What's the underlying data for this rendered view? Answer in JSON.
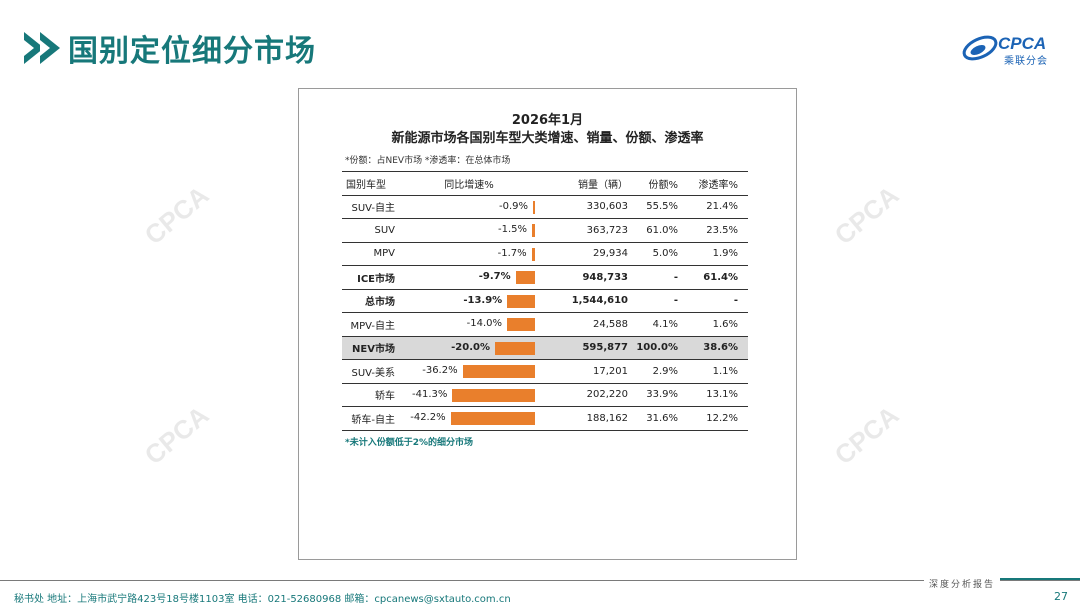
{
  "header": {
    "title": "国别定位细分市场"
  },
  "logo": {
    "text": "CPCA",
    "sub": "乘联分会"
  },
  "watermark": {
    "text": "CPCA"
  },
  "panel": {
    "title_line1": "2026年1月",
    "title_line2": "新能源市场各国别车型大类增速、销量、份额、渗透率",
    "note": "*份额：占NEV市场    *渗透率：在总体市场",
    "footnote": "*未计入份额低于2%的细分市场",
    "columns": {
      "name": "国别车型",
      "growth": "同比增速%",
      "sales": "销量（辆）",
      "share": "份额%",
      "penetration": "渗透率%"
    }
  },
  "chart_data": {
    "type": "table",
    "rows": [
      {
        "name": "SUV-自主",
        "growth": "-0.9%",
        "growth_value": -0.9,
        "sales": "330,603",
        "share": "55.5%",
        "penetration": "21.4%",
        "bold": false,
        "highlight": false
      },
      {
        "name": "SUV",
        "growth": "-1.5%",
        "growth_value": -1.5,
        "sales": "363,723",
        "share": "61.0%",
        "penetration": "23.5%",
        "bold": false,
        "highlight": false
      },
      {
        "name": "MPV",
        "growth": "-1.7%",
        "growth_value": -1.7,
        "sales": "29,934",
        "share": "5.0%",
        "penetration": "1.9%",
        "bold": false,
        "highlight": false
      },
      {
        "name": "ICE市场",
        "growth": "-9.7%",
        "growth_value": -9.7,
        "sales": "948,733",
        "share": "-",
        "penetration": "61.4%",
        "bold": true,
        "highlight": false
      },
      {
        "name": "总市场",
        "growth": "-13.9%",
        "growth_value": -13.9,
        "sales": "1,544,610",
        "share": "-",
        "penetration": "-",
        "bold": true,
        "highlight": false
      },
      {
        "name": "MPV-自主",
        "growth": "-14.0%",
        "growth_value": -14.0,
        "sales": "24,588",
        "share": "4.1%",
        "penetration": "1.6%",
        "bold": false,
        "highlight": false
      },
      {
        "name": "NEV市场",
        "growth": "-20.0%",
        "growth_value": -20.0,
        "sales": "595,877",
        "share": "100.0%",
        "penetration": "38.6%",
        "bold": true,
        "highlight": true
      },
      {
        "name": "SUV-美系",
        "growth": "-36.2%",
        "growth_value": -36.2,
        "sales": "17,201",
        "share": "2.9%",
        "penetration": "1.1%",
        "bold": false,
        "highlight": false
      },
      {
        "name": "轿车",
        "growth": "-41.3%",
        "growth_value": -41.3,
        "sales": "202,220",
        "share": "33.9%",
        "penetration": "13.1%",
        "bold": false,
        "highlight": false
      },
      {
        "name": "轿车-自主",
        "growth": "-42.2%",
        "growth_value": -42.2,
        "sales": "188,162",
        "share": "31.6%",
        "penetration": "12.2%",
        "bold": false,
        "highlight": false
      }
    ],
    "bar_color": "#e97f2c"
  },
  "footer": {
    "contact": "秘书处   地址：上海市武宁路423号18号楼1103室  电话：021-52680968   邮箱：cpcanews@sxtauto.com.cn",
    "tagline": "深度分析报告",
    "page": "27"
  },
  "colors": {
    "accent": "#17787a",
    "bar": "#e97f2c",
    "logo": "#1b63b5"
  }
}
